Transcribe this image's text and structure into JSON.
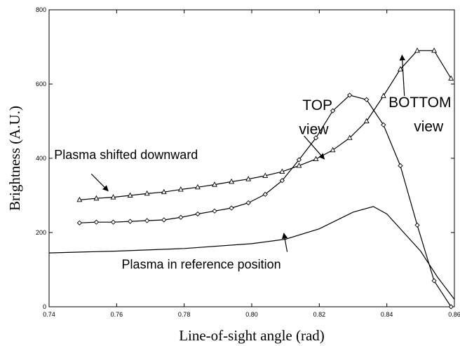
{
  "chart_data": {
    "type": "line",
    "xlabel": "Line-of-sight angle (rad)",
    "ylabel": "Brightness (A.U.)",
    "xlim": [
      0.74,
      0.86
    ],
    "ylim": [
      0,
      800
    ],
    "x_ticks": [
      0.74,
      0.76,
      0.78,
      0.8,
      0.82,
      0.84,
      0.86
    ],
    "x_tick_labels": [
      "0.74",
      "0.76",
      "0.78",
      "0.80",
      "0.82",
      "0.84",
      "0.86"
    ],
    "y_ticks": [
      0,
      200,
      400,
      600,
      800
    ],
    "y_tick_labels": [
      "0",
      "200",
      "400",
      "600",
      "800"
    ],
    "grid": false,
    "series": [
      {
        "marker": "triangle",
        "x": [
          0.749,
          0.754,
          0.759,
          0.764,
          0.769,
          0.774,
          0.779,
          0.784,
          0.789,
          0.794,
          0.799,
          0.804,
          0.809,
          0.814,
          0.819,
          0.824,
          0.829,
          0.834,
          0.839,
          0.844,
          0.849,
          0.854,
          0.859
        ],
        "values": [
          288,
          292,
          295,
          300,
          305,
          309,
          316,
          322,
          329,
          337,
          344,
          353,
          364,
          380,
          398,
          422,
          455,
          500,
          568,
          640,
          690,
          690,
          615
        ]
      },
      {
        "marker": "diamond",
        "x": [
          0.749,
          0.754,
          0.759,
          0.764,
          0.769,
          0.774,
          0.779,
          0.784,
          0.789,
          0.794,
          0.799,
          0.804,
          0.809,
          0.814,
          0.819,
          0.824,
          0.829,
          0.834,
          0.839,
          0.844,
          0.849,
          0.854,
          0.859
        ],
        "values": [
          226,
          228,
          228,
          230,
          232,
          234,
          241,
          250,
          258,
          266,
          280,
          303,
          340,
          396,
          455,
          528,
          570,
          558,
          490,
          380,
          220,
          70,
          0
        ]
      },
      {
        "marker": "none",
        "x": [
          0.74,
          0.76,
          0.78,
          0.8,
          0.81,
          0.82,
          0.83,
          0.836,
          0.84,
          0.845,
          0.85,
          0.855,
          0.86
        ],
        "values": [
          145,
          150,
          157,
          170,
          182,
          210,
          255,
          270,
          250,
          200,
          150,
          80,
          20
        ]
      }
    ],
    "annotations": [
      {
        "text": "Plasma shifted downward",
        "x": 0.7415,
        "y": 398,
        "arrow_from": [
          0.7525,
          358
        ],
        "arrow_to": [
          0.7575,
          312
        ]
      },
      {
        "text": "Plasma in reference position",
        "x": 0.7615,
        "y": 103,
        "arrow_from": [
          0.8105,
          148
        ],
        "arrow_to": [
          0.8095,
          198
        ]
      },
      {
        "text": "TOP",
        "x": 0.815,
        "y": 530,
        "arrow_from": [
          0.8155,
          460
        ],
        "arrow_to": [
          0.8215,
          398
        ]
      },
      {
        "text": "view",
        "x": 0.814,
        "y": 465
      },
      {
        "text": "BOTTOM",
        "x": 0.8405,
        "y": 538,
        "arrow_from": [
          0.8452,
          568
        ],
        "arrow_to": [
          0.8445,
          678
        ]
      },
      {
        "text": "view",
        "x": 0.848,
        "y": 473
      }
    ]
  }
}
